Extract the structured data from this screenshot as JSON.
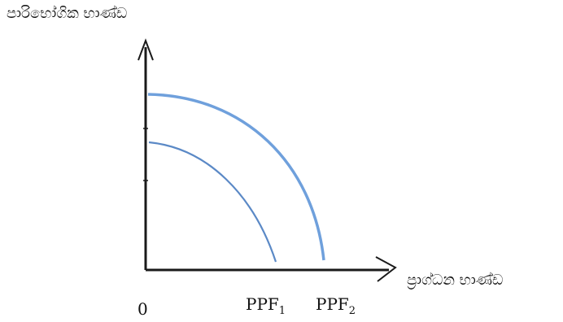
{
  "diagram": {
    "y_axis_label": "පාරිභෝගික භාණ්ඩ",
    "x_axis_label": "ප්‍රාග්ධන භාණ්ඩ",
    "origin_label": "0",
    "curves": [
      {
        "base": "PPF",
        "sub": "1",
        "color": "#5b89c6"
      },
      {
        "base": "PPF",
        "sub": "2",
        "color": "#6fa0dc"
      }
    ],
    "axis_color": "#1a1a1a"
  }
}
